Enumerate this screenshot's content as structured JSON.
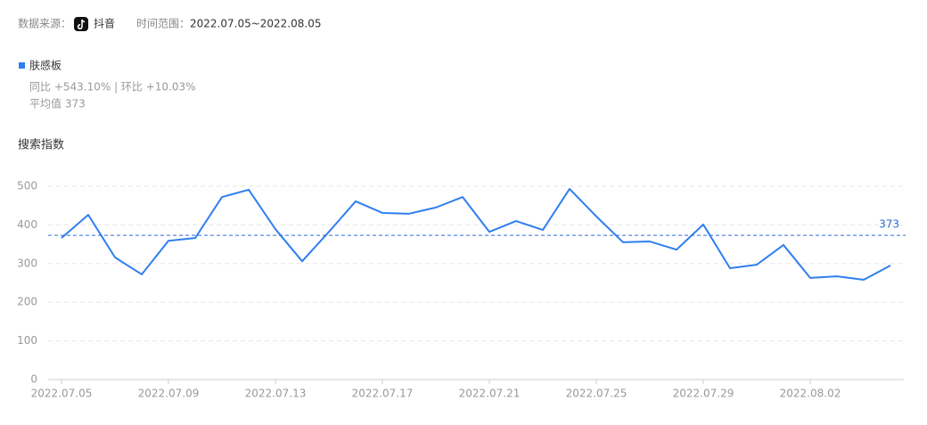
{
  "header": {
    "source_label": "数据来源：",
    "source": "抖音",
    "range_label": "时间范围：",
    "range": "2022.07.05~2022.08.05"
  },
  "chart_data": {
    "type": "line",
    "title": "搜索指数",
    "categories": [
      "2022.07.05",
      null,
      null,
      null,
      "2022.07.09",
      null,
      null,
      null,
      "2022.07.13",
      null,
      null,
      null,
      "2022.07.17",
      null,
      null,
      null,
      "2022.07.21",
      null,
      null,
      null,
      "2022.07.25",
      null,
      null,
      null,
      "2022.07.29",
      null,
      null,
      null,
      "2022.08.02",
      null,
      null,
      null
    ],
    "series": [
      {
        "name": "肤感板",
        "color": "#2f7fee",
        "values": [
          366,
          426,
          316,
          272,
          359,
          366,
          472,
          491,
          389,
          306,
          382,
          461,
          431,
          429,
          445,
          472,
          382,
          410,
          387,
          493,
          422,
          355,
          357,
          336,
          401,
          288,
          297,
          348,
          263,
          267,
          258,
          295
        ]
      }
    ],
    "stats": [
      "同比 +543.10% | 环比 +10.03%",
      "平均值 373"
    ],
    "reference_line": 373,
    "ylim": [
      0,
      500
    ],
    "yticks": [
      0,
      100,
      200,
      300,
      400,
      500
    ],
    "grid": true
  }
}
